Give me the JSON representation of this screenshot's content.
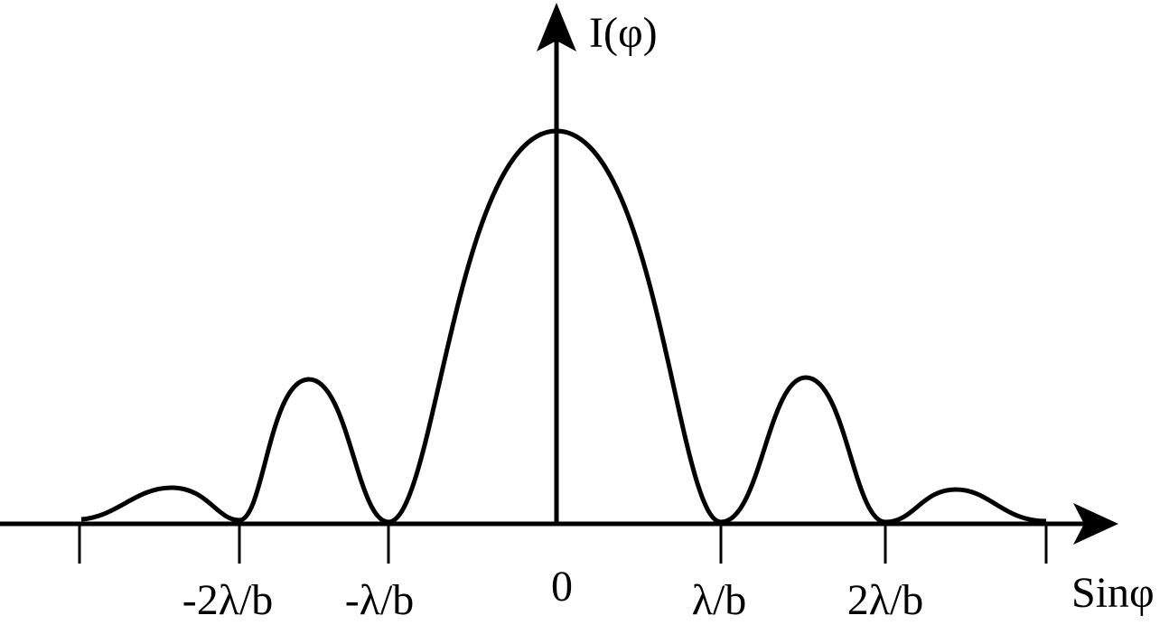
{
  "axes": {
    "y_label": "I(φ)",
    "x_label": "Sinφ"
  },
  "tick_labels": [
    "-2λ/b",
    "-λ/b",
    "0",
    "λ/b",
    "2λ/b"
  ]
}
